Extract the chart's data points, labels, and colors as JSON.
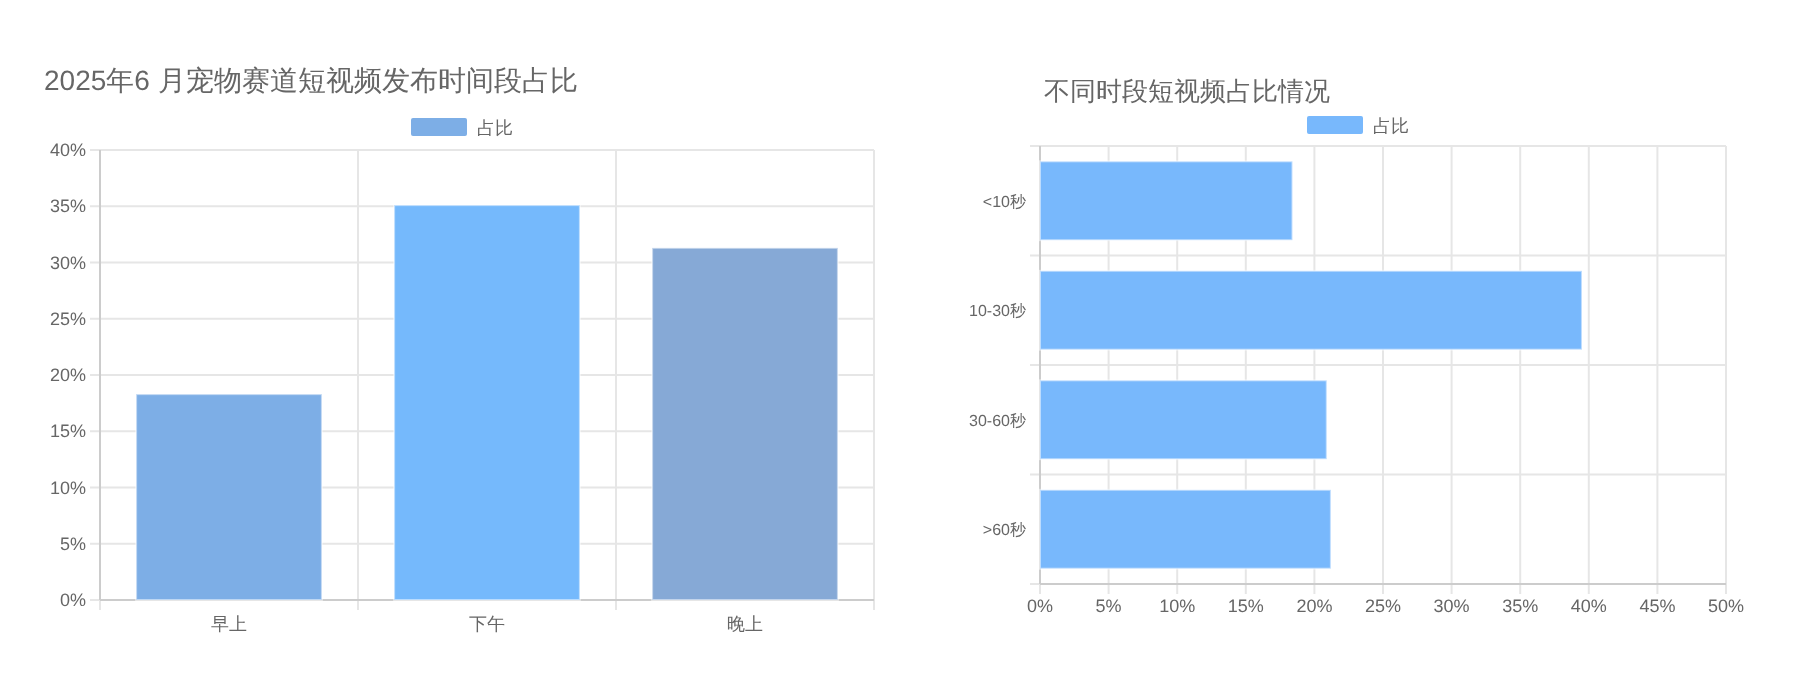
{
  "chart_data": [
    {
      "type": "bar",
      "title": "2025年6 月宠物赛道短视频发布时间段占比",
      "categories": [
        "早上",
        "下午",
        "晚上"
      ],
      "series": [
        {
          "name": "占比",
          "color": "#7daee6",
          "colors": [
            "#7daee6",
            "#75b9fc",
            "#86a9d6"
          ],
          "values": [
            18.3,
            35.1,
            31.3
          ]
        }
      ],
      "ylim": [
        0,
        40
      ],
      "yticks": [
        {
          "value": 0,
          "label": "0%"
        },
        {
          "value": 5,
          "label": "5%"
        },
        {
          "value": 10,
          "label": "10%"
        },
        {
          "value": 15,
          "label": "15%"
        },
        {
          "value": 20,
          "label": "20%"
        },
        {
          "value": 25,
          "label": "25%"
        },
        {
          "value": 30,
          "label": "30%"
        },
        {
          "value": 35,
          "label": "35%"
        },
        {
          "value": 40,
          "label": "40%"
        }
      ],
      "grid": true,
      "legend": "top"
    },
    {
      "type": "bar",
      "orientation": "horizontal",
      "title": "不同时段短视频占比情况",
      "categories": [
        "<10秒",
        "10-30秒",
        "30-60秒",
        ">60秒"
      ],
      "series": [
        {
          "name": "占比",
          "color": "#78b8fc",
          "values": [
            18.4,
            39.5,
            20.9,
            21.2
          ]
        }
      ],
      "xlim": [
        0,
        50
      ],
      "xticks": [
        {
          "value": 0,
          "label": "0%"
        },
        {
          "value": 5,
          "label": "5%"
        },
        {
          "value": 10,
          "label": "10%"
        },
        {
          "value": 15,
          "label": "15%"
        },
        {
          "value": 20,
          "label": "20%"
        },
        {
          "value": 25,
          "label": "25%"
        },
        {
          "value": 30,
          "label": "30%"
        },
        {
          "value": 35,
          "label": "35%"
        },
        {
          "value": 40,
          "label": "40%"
        },
        {
          "value": 45,
          "label": "45%"
        },
        {
          "value": 50,
          "label": "50%"
        }
      ],
      "grid": true,
      "legend": "top"
    }
  ]
}
